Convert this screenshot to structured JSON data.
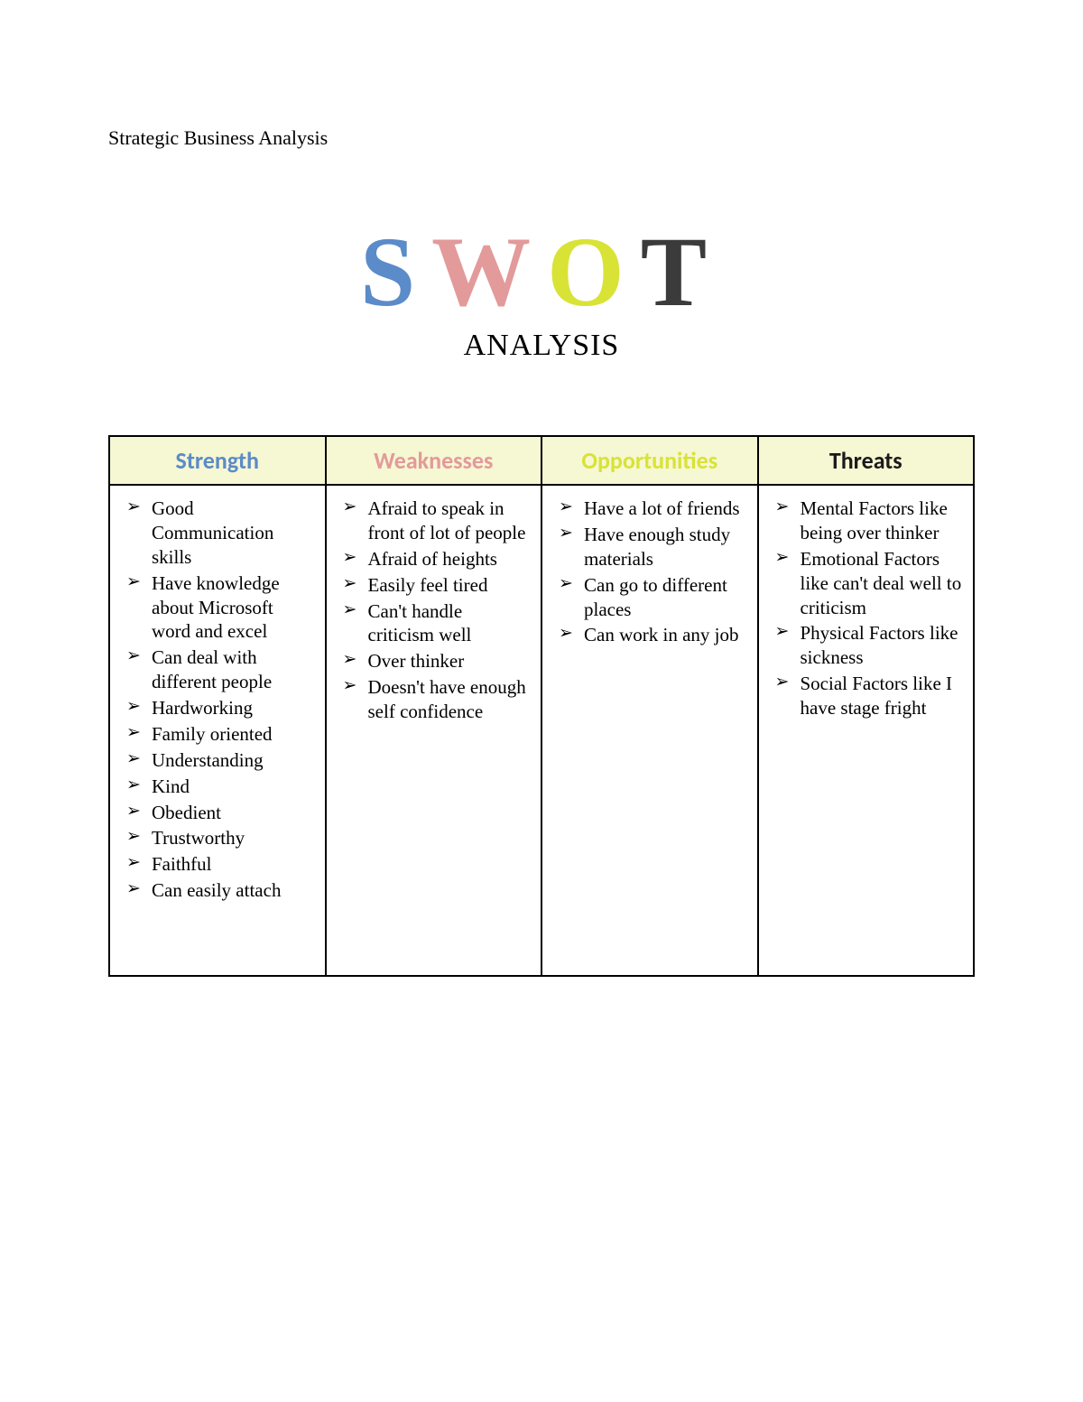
{
  "doc_header": "Strategic Business Analysis",
  "title_letters": {
    "s": {
      "text": "S",
      "color": "#5b8bc9"
    },
    "w": {
      "text": "W",
      "color": "#e39a9a"
    },
    "o": {
      "text": "O",
      "color": "#d8e336"
    },
    "t": {
      "text": "T",
      "color": "#3b3b3b"
    }
  },
  "subtitle": "ANALYSIS",
  "table": {
    "type": "table",
    "header_bg": "#f6f7d3",
    "border_color": "#000000",
    "body_font_family": "Times New Roman",
    "body_fontsize_pt": 16,
    "header_font_family": "Calibri",
    "header_fontsize_pt": 20,
    "columns": [
      {
        "label": "Strength",
        "color": "#5b8bc9"
      },
      {
        "label": "Weaknesses",
        "color": "#e39a9a"
      },
      {
        "label": "Opportunities",
        "color": "#d8e336"
      },
      {
        "label": "Threats",
        "color": "#1a1a1a"
      }
    ],
    "cells": {
      "strength": [
        "Good Communication skills",
        "Have knowledge about Microsoft word and excel",
        "Can deal with different people",
        "Hardworking",
        "Family oriented",
        "Understanding",
        "Kind",
        "Obedient",
        "Trustworthy",
        "Faithful",
        "Can easily attach"
      ],
      "weaknesses": [
        "Afraid to speak in front of lot of people",
        "Afraid of heights",
        "Easily feel tired",
        "Can't handle criticism well",
        "Over thinker",
        "Doesn't have enough self confidence"
      ],
      "opportunities": [
        "Have a lot of friends",
        "Have enough study materials",
        "Can go to different places",
        "Can work in any job"
      ],
      "threats": [
        "Mental Factors like being over thinker",
        "Emotional Factors like can't deal well to criticism",
        "Physical Factors like sickness",
        "Social Factors like I have stage fright"
      ]
    }
  }
}
